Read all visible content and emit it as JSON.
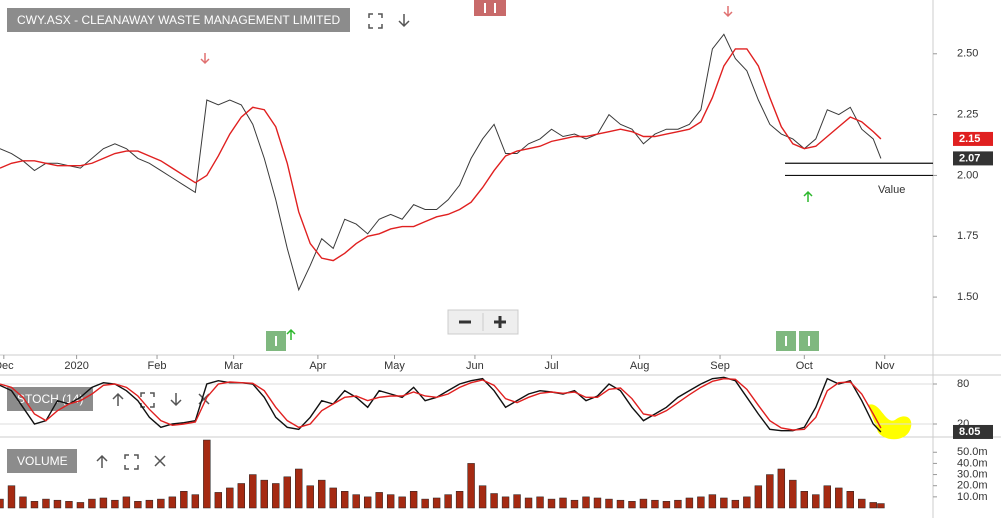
{
  "chart_data": [
    {
      "type": "line",
      "title": "CWY.ASX - CLEANAWAY WASTE MANAGEMENT LIMITED",
      "annotation": "Value",
      "x": [
        0,
        3,
        6,
        9,
        12,
        15,
        18,
        21,
        24,
        27,
        30,
        33,
        36,
        39,
        42,
        45,
        48,
        51,
        54,
        57,
        60,
        63,
        66,
        69,
        72,
        75,
        78,
        81,
        84,
        87,
        90,
        93,
        96,
        99,
        102,
        105,
        108,
        111,
        114,
        117,
        120,
        123,
        126,
        129,
        132,
        135,
        138,
        141,
        144,
        147,
        150,
        153,
        156,
        159,
        162,
        165,
        168,
        171,
        174,
        177,
        180,
        183,
        186,
        189,
        192,
        195,
        198,
        201,
        204,
        207,
        210,
        213,
        216,
        219,
        222,
        225,
        228,
        230
      ],
      "series": [
        {
          "color": "#3a3a3a",
          "last_value_label": true,
          "values": [
            2.11,
            2.09,
            2.06,
            2.02,
            2.05,
            2.05,
            2.04,
            2.03,
            2.07,
            2.11,
            2.13,
            2.11,
            2.07,
            2.05,
            2.02,
            1.99,
            1.96,
            1.93,
            2.31,
            2.29,
            2.31,
            2.29,
            2.21,
            2.07,
            1.9,
            1.7,
            1.53,
            1.63,
            1.74,
            1.7,
            1.82,
            1.8,
            1.76,
            1.82,
            1.84,
            1.82,
            1.88,
            1.86,
            1.86,
            1.9,
            1.96,
            2.07,
            2.15,
            2.21,
            2.09,
            2.09,
            2.13,
            2.15,
            2.19,
            2.16,
            2.17,
            2.15,
            2.17,
            2.25,
            2.21,
            2.19,
            2.13,
            2.17,
            2.19,
            2.19,
            2.21,
            2.27,
            2.52,
            2.58,
            2.48,
            2.43,
            2.31,
            2.21,
            2.17,
            2.15,
            2.11,
            2.15,
            2.27,
            2.25,
            2.28,
            2.19,
            2.15,
            2.07
          ]
        },
        {
          "color": "#e02020",
          "last_value_label": true,
          "values": [
            2.03,
            2.05,
            2.06,
            2.06,
            2.05,
            2.04,
            2.04,
            2.04,
            2.05,
            2.07,
            2.09,
            2.1,
            2.1,
            2.08,
            2.06,
            2.03,
            2.0,
            1.97,
            2.0,
            2.08,
            2.17,
            2.24,
            2.28,
            2.27,
            2.2,
            2.05,
            1.85,
            1.72,
            1.66,
            1.65,
            1.68,
            1.72,
            1.75,
            1.76,
            1.78,
            1.79,
            1.79,
            1.81,
            1.83,
            1.84,
            1.86,
            1.89,
            1.95,
            2.02,
            2.08,
            2.1,
            2.11,
            2.12,
            2.14,
            2.15,
            2.16,
            2.16,
            2.17,
            2.18,
            2.19,
            2.18,
            2.16,
            2.16,
            2.17,
            2.18,
            2.19,
            2.22,
            2.32,
            2.45,
            2.52,
            2.52,
            2.45,
            2.32,
            2.2,
            2.13,
            2.11,
            2.12,
            2.16,
            2.2,
            2.24,
            2.22,
            2.18,
            2.15
          ]
        }
      ],
      "hlines": [
        2.05,
        2
      ],
      "xlim": [
        0,
        243.6
      ],
      "ylim": [
        1.262,
        2.721
      ],
      "xticks": [
        {
          "value": 1,
          "label": "Dec"
        },
        {
          "value": 20,
          "label": "2020"
        },
        {
          "value": 41,
          "label": "Feb"
        },
        {
          "value": 61,
          "label": "Mar"
        },
        {
          "value": 83,
          "label": "Apr"
        },
        {
          "value": 103,
          "label": "May"
        },
        {
          "value": 124,
          "label": "Jun"
        },
        {
          "value": 144,
          "label": "Jul"
        },
        {
          "value": 167,
          "label": "Aug"
        },
        {
          "value": 188,
          "label": "Sep"
        },
        {
          "value": 210,
          "label": "Oct"
        },
        {
          "value": 231,
          "label": "Nov"
        }
      ],
      "yticks": [
        {
          "value": 2.5,
          "label": "2.50"
        },
        {
          "value": 2.25,
          "label": "2.25"
        },
        {
          "value": 2,
          "label": "2.00"
        },
        {
          "value": 1.75,
          "label": "1.75"
        },
        {
          "value": 1.5,
          "label": "1.50"
        }
      ]
    },
    {
      "type": "line",
      "title": "STOCH (14)",
      "x": [
        0,
        3,
        6,
        9,
        12,
        15,
        18,
        21,
        24,
        27,
        30,
        33,
        36,
        39,
        42,
        45,
        48,
        51,
        54,
        57,
        60,
        63,
        66,
        69,
        72,
        75,
        78,
        81,
        84,
        87,
        90,
        93,
        96,
        99,
        102,
        105,
        108,
        111,
        114,
        117,
        120,
        123,
        126,
        129,
        132,
        135,
        138,
        141,
        144,
        147,
        150,
        153,
        156,
        159,
        162,
        165,
        168,
        171,
        174,
        177,
        180,
        183,
        186,
        189,
        192,
        195,
        198,
        201,
        204,
        207,
        210,
        213,
        216,
        219,
        222,
        225,
        228,
        230
      ],
      "series": [
        {
          "color": "#111111",
          "last_value_label": true,
          "values": [
            78,
            70,
            45,
            20,
            25,
            55,
            50,
            60,
            75,
            82,
            80,
            70,
            55,
            30,
            15,
            20,
            22,
            25,
            80,
            85,
            82,
            82,
            80,
            60,
            30,
            15,
            12,
            30,
            55,
            50,
            70,
            60,
            45,
            70,
            65,
            60,
            75,
            55,
            60,
            70,
            80,
            85,
            88,
            70,
            45,
            55,
            65,
            70,
            68,
            65,
            70,
            55,
            62,
            80,
            70,
            45,
            25,
            35,
            45,
            60,
            70,
            80,
            88,
            90,
            85,
            60,
            35,
            12,
            10,
            10,
            15,
            45,
            88,
            80,
            85,
            55,
            20,
            8.05
          ]
        },
        {
          "color": "#e02020",
          "values": [
            80,
            75,
            60,
            35,
            25,
            40,
            50,
            55,
            65,
            78,
            80,
            75,
            62,
            42,
            25,
            18,
            20,
            23,
            60,
            80,
            83,
            82,
            81,
            70,
            45,
            25,
            15,
            20,
            40,
            50,
            60,
            62,
            55,
            60,
            62,
            62,
            68,
            62,
            60,
            65,
            75,
            82,
            86,
            78,
            58,
            52,
            60,
            66,
            68,
            66,
            68,
            60,
            60,
            72,
            74,
            58,
            35,
            32,
            40,
            52,
            64,
            75,
            84,
            88,
            87,
            72,
            48,
            25,
            14,
            11,
            12,
            30,
            70,
            82,
            83,
            65,
            35,
            14
          ]
        }
      ],
      "xlim": [
        0,
        243.6
      ],
      "ylim": [
        2,
        92
      ],
      "yticks": [
        80,
        20
      ]
    },
    {
      "type": "bar",
      "title": "VOLUME",
      "color": "#a52a12",
      "x": [
        0,
        3,
        6,
        9,
        12,
        15,
        18,
        21,
        24,
        27,
        30,
        33,
        36,
        39,
        42,
        45,
        48,
        51,
        54,
        57,
        60,
        63,
        66,
        69,
        72,
        75,
        78,
        81,
        84,
        87,
        90,
        93,
        96,
        99,
        102,
        105,
        108,
        111,
        114,
        117,
        120,
        123,
        126,
        129,
        132,
        135,
        138,
        141,
        144,
        147,
        150,
        153,
        156,
        159,
        162,
        165,
        168,
        171,
        174,
        177,
        180,
        183,
        186,
        189,
        192,
        195,
        198,
        201,
        204,
        207,
        210,
        213,
        216,
        219,
        222,
        225,
        228,
        230
      ],
      "values": [
        8,
        20,
        10,
        6,
        8,
        7,
        6,
        5,
        8,
        9,
        7,
        10,
        6,
        7,
        8,
        10,
        15,
        12,
        61,
        14,
        18,
        22,
        30,
        25,
        22,
        28,
        35,
        20,
        25,
        18,
        15,
        12,
        10,
        14,
        12,
        10,
        15,
        8,
        9,
        12,
        15,
        40,
        20,
        13,
        10,
        12,
        9,
        10,
        8,
        9,
        7,
        10,
        9,
        8,
        7,
        6,
        8,
        7,
        6,
        7,
        9,
        10,
        12,
        9,
        7,
        10,
        20,
        30,
        35,
        25,
        15,
        12,
        20,
        18,
        15,
        8,
        5,
        4
      ],
      "xlim": [
        0,
        243.6
      ],
      "ylim": [
        0,
        61
      ],
      "yticks": [
        {
          "value": 50,
          "label": "50.0m"
        },
        {
          "value": 40,
          "label": "40.0m"
        },
        {
          "value": 30,
          "label": "30.0m"
        },
        {
          "value": 20,
          "label": "20.0m"
        },
        {
          "value": 10,
          "label": "10.0m"
        }
      ]
    }
  ]
}
